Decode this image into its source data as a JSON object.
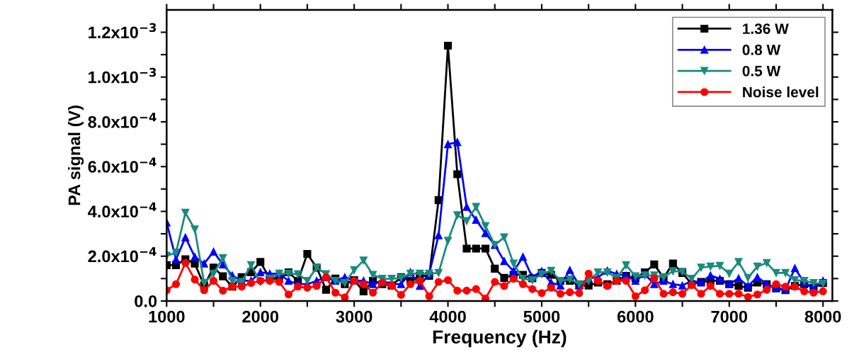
{
  "chart_data": {
    "type": "line",
    "xlabel": "Frequency (Hz)",
    "ylabel": "PA signal (V)",
    "x": [
      1000,
      1100,
      1200,
      1300,
      1400,
      1500,
      1600,
      1700,
      1800,
      1900,
      2000,
      2100,
      2200,
      2300,
      2400,
      2500,
      2600,
      2700,
      2800,
      2900,
      3000,
      3100,
      3200,
      3300,
      3400,
      3500,
      3600,
      3700,
      3800,
      3900,
      4000,
      4100,
      4200,
      4300,
      4400,
      4500,
      4600,
      4700,
      4800,
      4900,
      5000,
      5100,
      5200,
      5300,
      5400,
      5500,
      5600,
      5700,
      5800,
      5900,
      6000,
      6100,
      6200,
      6300,
      6400,
      6500,
      6600,
      6700,
      6800,
      6900,
      7000,
      7100,
      7200,
      7300,
      7400,
      7500,
      7600,
      7700,
      7800,
      7900,
      8000
    ],
    "series": [
      {
        "name": "1.36 W",
        "color": "#000000",
        "marker": "square",
        "values": [
          0.00016,
          0.00016,
          0.000186,
          0.000167,
          6.9e-05,
          0.000149,
          0.00011,
          6.4e-05,
          0.000106,
          0.000128,
          0.000174,
          0.0001,
          0.0001,
          0.000128,
          9e-05,
          0.00021,
          0.000149,
          5e-05,
          0.0001,
          7.5e-05,
          9.3e-05,
          4.3e-05,
          9e-05,
          7.5e-05,
          6.9e-05,
          0.000106,
          9e-05,
          0.000112,
          0.000112,
          0.00045,
          0.00114,
          0.000566,
          0.000234,
          0.000234,
          0.000234,
          0.000144,
          0.000103,
          0.000117,
          0.000117,
          0.000101,
          0.000125,
          0.000117,
          9e-05,
          9e-05,
          6.9e-05,
          6.9e-05,
          8.2e-05,
          7.5e-05,
          9e-05,
          0.000112,
          0.000101,
          0.000128,
          0.000163,
          0.000103,
          0.000167,
          0.000125,
          7.5e-05,
          8.5e-05,
          9e-05,
          9e-05,
          7.5e-05,
          6.7e-05,
          5.9e-05,
          8.2e-05,
          7.5e-05,
          5.6e-05,
          4.8e-05,
          6.7e-05,
          7.5e-05,
          5.9e-05,
          8e-05
        ]
      },
      {
        "name": "0.8 W",
        "color": "#0000ff",
        "marker": "triangle",
        "values": [
          0.00035,
          0.000186,
          0.000284,
          0.000197,
          0.000167,
          0.00022,
          0.000163,
          0.000114,
          9e-05,
          9e-05,
          0.000128,
          0.000122,
          0.000122,
          9e-05,
          7.5e-05,
          7.5e-05,
          9e-05,
          0.000106,
          9e-05,
          0.000106,
          9e-05,
          9e-05,
          7.5e-05,
          9e-05,
          7.5e-05,
          7.5e-05,
          0.000128,
          6.7e-05,
          0.000122,
          0.000293,
          0.0007,
          0.000709,
          0.00042,
          0.000362,
          0.000303,
          0.00025,
          0.000178,
          0.000133,
          0.000197,
          0.000106,
          0.000133,
          8.2e-05,
          6.9e-05,
          0.000138,
          7.1e-05,
          0.000101,
          0.000106,
          0.000135,
          0.00012,
          0.000114,
          9e-05,
          0.00012,
          7.5e-05,
          9e-05,
          7.5e-05,
          6.9e-05,
          9e-05,
          8.2e-05,
          0.000114,
          9.9e-05,
          7.5e-05,
          0.000101,
          6.7e-05,
          0.000106,
          7.5e-05,
          5.9e-05,
          5e-05,
          0.000146,
          8.2e-05,
          5.9e-05,
          9e-05
        ]
      },
      {
        "name": "0.5 W",
        "color": "#1a8a80",
        "marker": "triangle_down",
        "values": [
          0.000202,
          0.000216,
          0.000394,
          0.00032,
          8e-05,
          0.000122,
          0.000192,
          9e-05,
          8.5e-05,
          0.00016,
          8.5e-05,
          0.0001,
          0.000122,
          0.000122,
          0.00012,
          9e-05,
          0.000149,
          0.00012,
          9e-05,
          8e-05,
          0.000138,
          0.000181,
          0.000117,
          9.9e-05,
          9.9e-05,
          0.000103,
          0.000122,
          0.000122,
          0.000122,
          0.000125,
          0.000269,
          0.000383,
          0.000357,
          0.00042,
          0.000335,
          0.00025,
          0.000284,
          0.000167,
          9.9e-05,
          9.3e-05,
          0.00012,
          0.000135,
          9e-05,
          9.6e-05,
          7.5e-05,
          9e-05,
          0.000128,
          0.000128,
          0.000103,
          0.00016,
          0.00011,
          0.000114,
          0.000114,
          0.000106,
          0.000133,
          0.000131,
          9.9e-05,
          0.000149,
          0.000154,
          0.000157,
          0.000122,
          0.000174,
          0.000103,
          0.000154,
          0.00017,
          0.000125,
          0.000125,
          9.3e-05,
          9e-05,
          8e-05,
          7.8e-05
        ]
      },
      {
        "name": "Noise level",
        "color": "#ff0000",
        "marker": "circle",
        "values": [
          4.8e-05,
          7.5e-05,
          0.00017,
          9.6e-05,
          4.8e-05,
          9e-05,
          4.6e-05,
          6.4e-05,
          6.4e-05,
          8e-05,
          9e-05,
          9e-05,
          8.5e-05,
          2.9e-05,
          6.4e-05,
          5.9e-05,
          6.7e-05,
          0.000106,
          3.7e-05,
          1.6e-05,
          9e-05,
          7.5e-05,
          3.7e-05,
          8.2e-05,
          6.9e-05,
          2.7e-05,
          7.5e-05,
          9e-05,
          2.1e-05,
          8.5e-05,
          9.3e-05,
          4.6e-05,
          4.6e-05,
          5.3e-05,
          1.1e-05,
          8.5e-05,
          6.7e-05,
          9.9e-05,
          7.5e-05,
          5.3e-05,
          3.5e-05,
          5.9e-05,
          3.2e-05,
          3.9e-05,
          3.5e-05,
          0.000122,
          9e-05,
          6.7e-05,
          9e-05,
          9e-05,
          2.1e-05,
          4.8e-05,
          0.000101,
          3.2e-05,
          3.9e-05,
          3.2e-05,
          7.1e-05,
          3.2e-05,
          6.7e-05,
          3.2e-05,
          3.2e-05,
          3.2e-05,
          1.8e-05,
          2.9e-05,
          5e-05,
          7.5e-05,
          6.4e-05,
          6.4e-05,
          4.3e-05,
          3.7e-05,
          4.3e-05
        ]
      }
    ],
    "xlim": [
      1000,
      8100
    ],
    "xticks": [
      1000,
      {
        "value": 1500,
        "label": null
      },
      2000,
      {
        "value": 2500,
        "label": null
      },
      3000,
      {
        "value": 3500,
        "label": null
      },
      4000,
      {
        "value": 4500,
        "label": null
      },
      5000,
      {
        "value": 5500,
        "label": null
      },
      6000,
      {
        "value": 6500,
        "label": null
      },
      7000,
      {
        "value": 7500,
        "label": null
      },
      8000
    ],
    "ylim": [
      0,
      0.0013
    ],
    "yticks": [
      {
        "value": 0,
        "label": "0.0"
      },
      {
        "value": 0.0001,
        "label": null
      },
      {
        "value": 0.0002,
        "label": "2.0x10$^{−4}$"
      },
      {
        "value": 0.0003,
        "label": null
      },
      {
        "value": 0.0004,
        "label": "4.0x10$^{−4}$"
      },
      {
        "value": 0.0005,
        "label": null
      },
      {
        "value": 0.0006,
        "label": "6.0x10$^{−4}$"
      },
      {
        "value": 0.0007,
        "label": null
      },
      {
        "value": 0.0008,
        "label": "8.0x10$^{−4}$"
      },
      {
        "value": 0.0009,
        "label": null
      },
      {
        "value": 0.001,
        "label": "1.0x10$^{−3}$"
      },
      {
        "value": 0.0011,
        "label": null
      },
      {
        "value": 0.0012,
        "label": "1.2x10$^{−3}$"
      }
    ],
    "grid": false,
    "legend": "top right",
    "line_style": "solid"
  }
}
